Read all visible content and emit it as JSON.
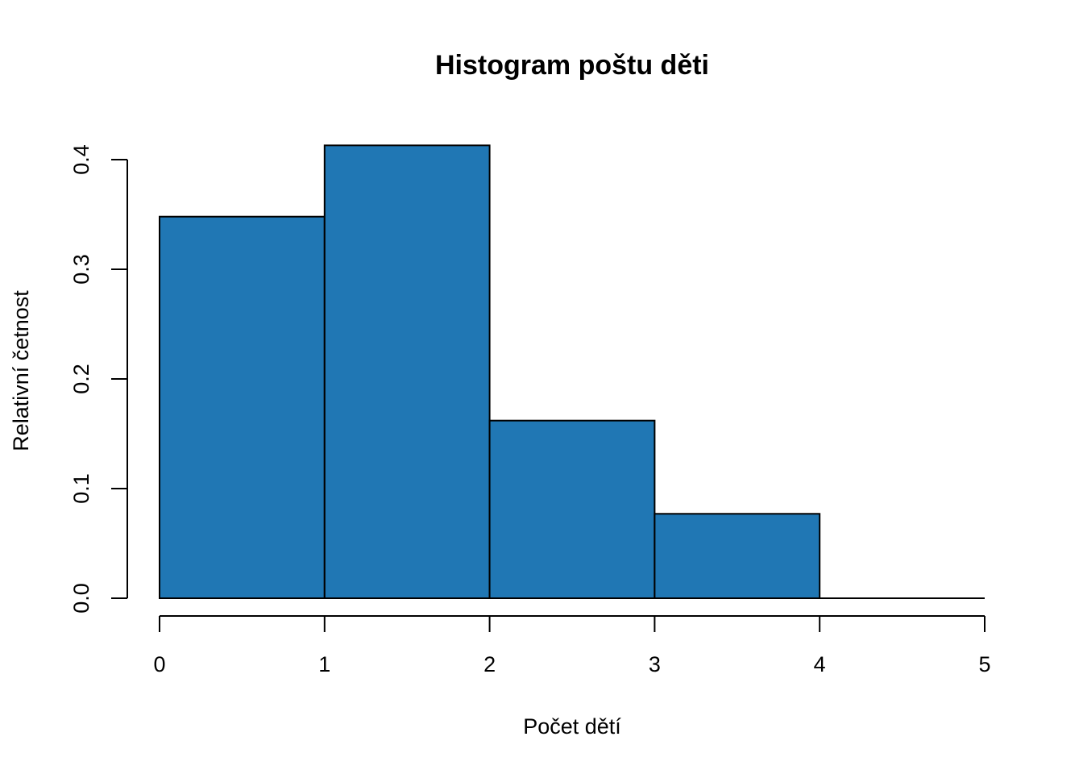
{
  "chart_data": {
    "type": "bar",
    "title": "Histogram poštu děti",
    "xlabel": "Počet dětí",
    "ylabel": "Relativní četnost",
    "bins": [
      {
        "x0": 0,
        "x1": 1,
        "value": 0.348
      },
      {
        "x0": 1,
        "x1": 2,
        "value": 0.413
      },
      {
        "x0": 2,
        "x1": 3,
        "value": 0.162
      },
      {
        "x0": 3,
        "x1": 4,
        "value": 0.077
      },
      {
        "x0": 4,
        "x1": 5,
        "value": 0.0
      }
    ],
    "xlim": [
      0,
      5
    ],
    "ylim": [
      0,
      0.4
    ],
    "x_ticks": [
      "0",
      "1",
      "2",
      "3",
      "4",
      "5"
    ],
    "y_ticks": [
      "0.0",
      "0.1",
      "0.2",
      "0.3",
      "0.4"
    ],
    "bar_color": "#2077b4",
    "grid": false
  }
}
